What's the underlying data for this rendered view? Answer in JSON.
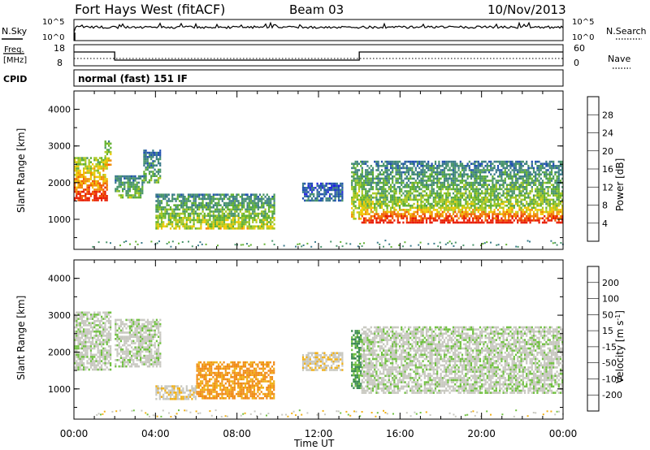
{
  "header": {
    "title": "Fort Hays West (fitACF)",
    "beam": "Beam 03",
    "date": "10/Nov/2013"
  },
  "mini_panels": {
    "nsky_label": "N.Sky",
    "nsky_ticks": [
      "10^5",
      "10^0"
    ],
    "nsearch_label": "N.Search",
    "nsearch_ticks": [
      "10^5",
      "10^0"
    ],
    "freq_label_top": "Freq.",
    "freq_label_unit": "[MHz]",
    "freq_ticks": [
      "18",
      "8"
    ],
    "nave_label": "Nave",
    "nave_ticks": [
      "60",
      "0"
    ],
    "cpid_label": "CPID",
    "cpid_text": "normal (fast) 151 IF"
  },
  "colors": {
    "power_scale": [
      "#2020e0",
      "#2050b0",
      "#3a7a8a",
      "#48946a",
      "#60b030",
      "#a8c820",
      "#f0c800",
      "#f08c00",
      "#f05a00",
      "#e81c00"
    ],
    "velocity_scale": [
      "#2038c0",
      "#28689a",
      "#3a8a50",
      "#70c040",
      "#c8c8c0",
      "#c8c8c0",
      "#f0b018",
      "#f08c18",
      "#f05a00",
      "#e81c00"
    ]
  },
  "chart_data": [
    {
      "type": "heatmap",
      "name": "power",
      "ylabel": "Slant Range [km]",
      "ylim": [
        180,
        4500
      ],
      "xlim": [
        0,
        24
      ],
      "yticks": [
        "4000",
        "3000",
        "2000",
        "1000"
      ],
      "colorbar_label": "Power [dB]",
      "colorbar_ticks": [
        "28",
        "24",
        "20",
        "16",
        "12",
        "8",
        "4"
      ],
      "echo_regions": [
        {
          "t_start": 0.0,
          "t_end": 1.6,
          "range_low": 1500,
          "range_high": 2700,
          "level": 24
        },
        {
          "t_start": 1.5,
          "t_end": 1.8,
          "range_low": 2500,
          "range_high": 3150,
          "level": 18
        },
        {
          "t_start": 2.0,
          "t_end": 3.4,
          "range_low": 1600,
          "range_high": 2200,
          "level": 12
        },
        {
          "t_start": 3.4,
          "t_end": 4.2,
          "range_low": 2000,
          "range_high": 2900,
          "level": 10
        },
        {
          "t_start": 4.0,
          "t_end": 9.8,
          "range_low": 750,
          "range_high": 1700,
          "level": 14
        },
        {
          "t_start": 11.2,
          "t_end": 13.2,
          "range_low": 1500,
          "range_high": 2000,
          "level": 5
        },
        {
          "t_start": 13.6,
          "t_end": 14.1,
          "range_low": 1000,
          "range_high": 2600,
          "level": 16
        },
        {
          "t_start": 14.1,
          "t_end": 24.0,
          "range_low": 900,
          "range_high": 1400,
          "level": 26
        },
        {
          "t_start": 14.1,
          "t_end": 24.0,
          "range_low": 1400,
          "range_high": 2600,
          "level": 12
        }
      ]
    },
    {
      "type": "heatmap",
      "name": "velocity",
      "xlabel": "Time UT",
      "ylabel": "Slant Range [km]",
      "ylim": [
        180,
        4500
      ],
      "xlim": [
        0,
        24
      ],
      "yticks": [
        "4000",
        "3000",
        "2000",
        "1000"
      ],
      "xticks": [
        "00:00",
        "04:00",
        "08:00",
        "12:00",
        "16:00",
        "20:00",
        "00:00"
      ],
      "colorbar_label": "Velocity [m s",
      "colorbar_unit_sup": "-1",
      "colorbar_unit_end": "]",
      "colorbar_ticks": [
        "200",
        "100",
        "50",
        "15",
        "-15",
        "-50",
        "-100",
        "-200"
      ],
      "echo_regions": [
        {
          "t_start": 0.0,
          "t_end": 1.8,
          "range_low": 1500,
          "range_high": 3100,
          "velocity": 0
        },
        {
          "t_start": 2.0,
          "t_end": 4.2,
          "range_low": 1600,
          "range_high": 2900,
          "velocity": 0
        },
        {
          "t_start": 4.0,
          "t_end": 6.0,
          "range_low": 750,
          "range_high": 1100,
          "velocity": -40
        },
        {
          "t_start": 6.0,
          "t_end": 9.8,
          "range_low": 750,
          "range_high": 1750,
          "velocity": -110
        },
        {
          "t_start": 11.2,
          "t_end": 13.2,
          "range_low": 1500,
          "range_high": 2000,
          "velocity": -40
        },
        {
          "t_start": 13.6,
          "t_end": 14.1,
          "range_low": 1000,
          "range_high": 2600,
          "velocity": 60
        },
        {
          "t_start": 14.1,
          "t_end": 24.0,
          "range_low": 900,
          "range_high": 2700,
          "velocity": 0
        }
      ]
    }
  ]
}
